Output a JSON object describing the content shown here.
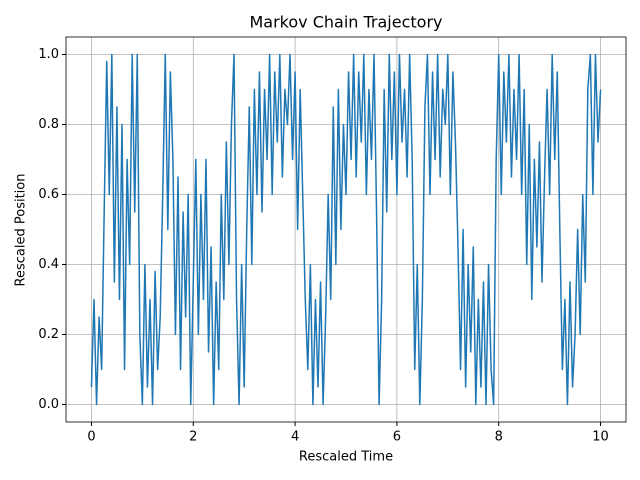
{
  "chart_data": {
    "type": "line",
    "title": "Markov Chain Trajectory",
    "x_label": "Rescaled Time",
    "y_label": "Rescaled Position",
    "color": "#1f77b4",
    "grid": true,
    "xlim": [
      -0.5,
      10.5
    ],
    "ylim": [
      -0.05,
      1.05
    ],
    "xticks": [
      0,
      2,
      4,
      6,
      8,
      10
    ],
    "yticks": [
      {
        "value": 0,
        "label": "0.0"
      },
      0.2,
      0.4,
      0.6,
      0.8,
      {
        "value": 1,
        "label": "1.0"
      }
    ],
    "x": [
      0,
      0.05,
      0.1,
      0.15,
      0.2,
      0.25,
      0.3,
      0.35,
      0.4,
      0.45,
      0.5,
      0.55,
      0.6,
      0.65,
      0.7,
      0.75,
      0.8,
      0.85,
      0.9,
      0.95,
      1,
      1.05,
      1.1,
      1.15,
      1.2,
      1.25,
      1.3,
      1.35,
      1.4,
      1.45,
      1.5,
      1.55,
      1.6,
      1.65,
      1.7,
      1.75,
      1.8,
      1.85,
      1.9,
      1.95,
      2,
      2.05,
      2.1,
      2.15,
      2.2,
      2.25,
      2.3,
      2.35,
      2.4,
      2.45,
      2.5,
      2.55,
      2.6,
      2.65,
      2.7,
      2.75,
      2.8,
      2.85,
      2.9,
      2.95,
      3,
      3.05,
      3.1,
      3.15,
      3.2,
      3.25,
      3.3,
      3.35,
      3.4,
      3.45,
      3.5,
      3.55,
      3.6,
      3.65,
      3.7,
      3.75,
      3.8,
      3.85,
      3.9,
      3.95,
      4,
      4.05,
      4.1,
      4.15,
      4.2,
      4.25,
      4.3,
      4.35,
      4.4,
      4.45,
      4.5,
      4.55,
      4.6,
      4.65,
      4.7,
      4.75,
      4.8,
      4.85,
      4.9,
      4.95,
      5,
      5.05,
      5.1,
      5.15,
      5.2,
      5.25,
      5.3,
      5.35,
      5.4,
      5.45,
      5.5,
      5.55,
      5.6,
      5.65,
      5.7,
      5.75,
      5.8,
      5.85,
      5.9,
      5.95,
      6,
      6.05,
      6.1,
      6.15,
      6.2,
      6.25,
      6.3,
      6.35,
      6.4,
      6.45,
      6.5,
      6.55,
      6.6,
      6.65,
      6.7,
      6.75,
      6.8,
      6.85,
      6.9,
      6.95,
      7,
      7.05,
      7.1,
      7.15,
      7.2,
      7.25,
      7.3,
      7.35,
      7.4,
      7.45,
      7.5,
      7.55,
      7.6,
      7.65,
      7.7,
      7.75,
      7.8,
      7.85,
      7.9,
      7.95,
      8,
      8.05,
      8.1,
      8.15,
      8.2,
      8.25,
      8.3,
      8.35,
      8.4,
      8.45,
      8.5,
      8.55,
      8.6,
      8.65,
      8.7,
      8.75,
      8.8,
      8.85,
      8.9,
      8.95,
      9,
      9.05,
      9.1,
      9.15,
      9.2,
      9.25,
      9.3,
      9.35,
      9.4,
      9.45,
      9.5,
      9.55,
      9.6,
      9.65,
      9.7,
      9.75,
      9.8,
      9.85,
      9.9,
      9.95,
      10
    ],
    "values": [
      0.05,
      0.3,
      0.0,
      0.25,
      0.1,
      0.55,
      0.98,
      0.6,
      1.0,
      0.35,
      0.85,
      0.3,
      0.8,
      0.1,
      0.7,
      0.4,
      1.0,
      0.55,
      1.0,
      0.2,
      0.0,
      0.4,
      0.05,
      0.3,
      0.0,
      0.38,
      0.1,
      0.25,
      0.6,
      1.0,
      0.5,
      0.95,
      0.7,
      0.2,
      0.65,
      0.1,
      0.55,
      0.25,
      0.6,
      0.0,
      0.35,
      0.7,
      0.2,
      0.6,
      0.3,
      0.7,
      0.15,
      0.45,
      0.0,
      0.35,
      0.1,
      0.6,
      0.3,
      0.75,
      0.4,
      0.8,
      1.0,
      0.3,
      0.0,
      0.4,
      0.05,
      0.5,
      0.85,
      0.4,
      0.9,
      0.6,
      0.95,
      0.55,
      0.9,
      0.7,
      1.0,
      0.6,
      0.95,
      0.75,
      1.0,
      0.65,
      0.9,
      0.8,
      1.0,
      0.7,
      0.95,
      0.5,
      0.9,
      0.6,
      0.3,
      0.1,
      0.4,
      0.0,
      0.3,
      0.05,
      0.35,
      0.0,
      0.25,
      0.6,
      0.3,
      0.85,
      0.4,
      0.9,
      0.5,
      0.8,
      0.6,
      0.95,
      0.7,
      1.0,
      0.65,
      0.95,
      0.75,
      1.0,
      0.6,
      0.9,
      0.7,
      1.0,
      0.55,
      0.0,
      0.3,
      0.9,
      0.55,
      1.0,
      0.7,
      0.95,
      0.6,
      1.0,
      0.75,
      0.9,
      0.65,
      1.0,
      0.7,
      0.1,
      0.4,
      0.0,
      0.3,
      0.85,
      1.0,
      0.6,
      0.95,
      0.7,
      1.0,
      0.65,
      0.9,
      0.8,
      1.0,
      0.6,
      0.95,
      0.75,
      0.45,
      0.1,
      0.5,
      0.05,
      0.4,
      0.15,
      0.45,
      0.0,
      0.3,
      0.05,
      0.35,
      0.0,
      0.4,
      0.1,
      0.0,
      0.7,
      1.0,
      0.6,
      0.95,
      0.75,
      1.0,
      0.65,
      0.9,
      0.7,
      1.0,
      0.6,
      0.9,
      0.4,
      0.8,
      0.3,
      0.7,
      0.45,
      0.75,
      0.35,
      0.65,
      0.9,
      0.6,
      1.0,
      0.7,
      0.95,
      0.5,
      0.1,
      0.3,
      0.0,
      0.35,
      0.05,
      0.2,
      0.5,
      0.2,
      0.6,
      0.35,
      0.9,
      1.0,
      0.6,
      1.0,
      0.75,
      0.9
    ]
  }
}
